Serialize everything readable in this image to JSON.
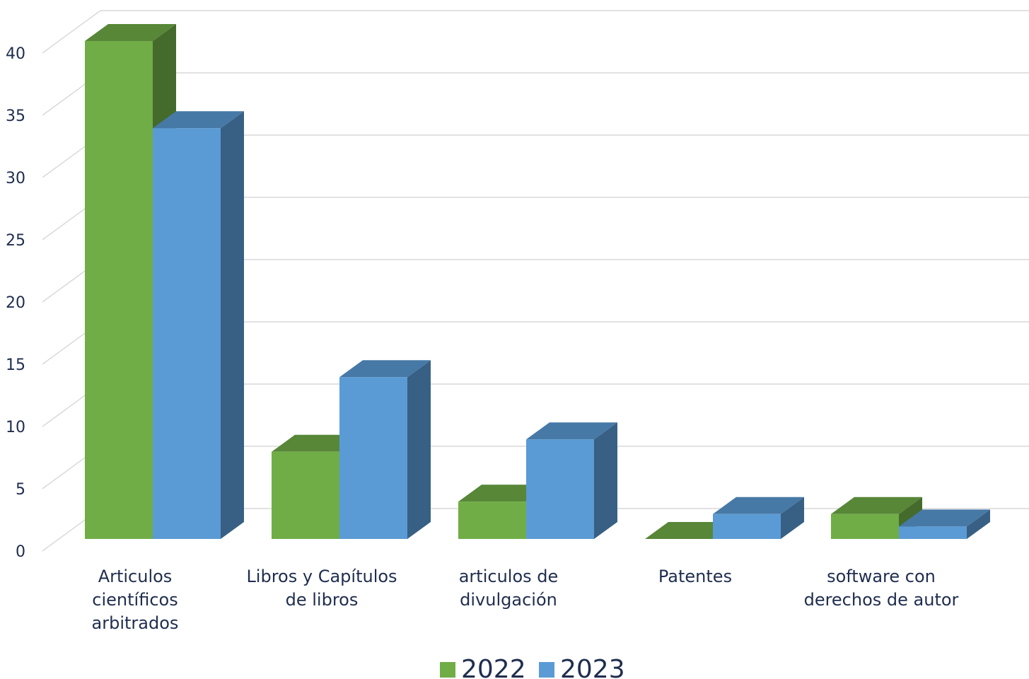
{
  "chart_data": {
    "type": "bar",
    "title": "",
    "xlabel": "",
    "ylabel": "",
    "categories": [
      [
        "Articulos",
        "científicos",
        "arbitrados"
      ],
      [
        "Libros y Capítulos",
        "de libros"
      ],
      [
        "articulos de",
        "divulgación"
      ],
      [
        "Patentes"
      ],
      [
        "software con",
        "derechos de autor"
      ]
    ],
    "series": [
      {
        "name": "2022",
        "color": "#70AD47",
        "values": [
          40,
          7,
          3,
          0,
          2
        ]
      },
      {
        "name": "2023",
        "color": "#5B9BD5",
        "values": [
          33,
          13,
          8,
          2,
          1
        ]
      }
    ],
    "ylim": [
      0,
      40
    ],
    "yticks": [
      "0",
      "5",
      "10",
      "15",
      "20",
      "25",
      "30",
      "35",
      "40"
    ],
    "grid": true,
    "legend_position": "bottom",
    "style": "3d-column"
  }
}
